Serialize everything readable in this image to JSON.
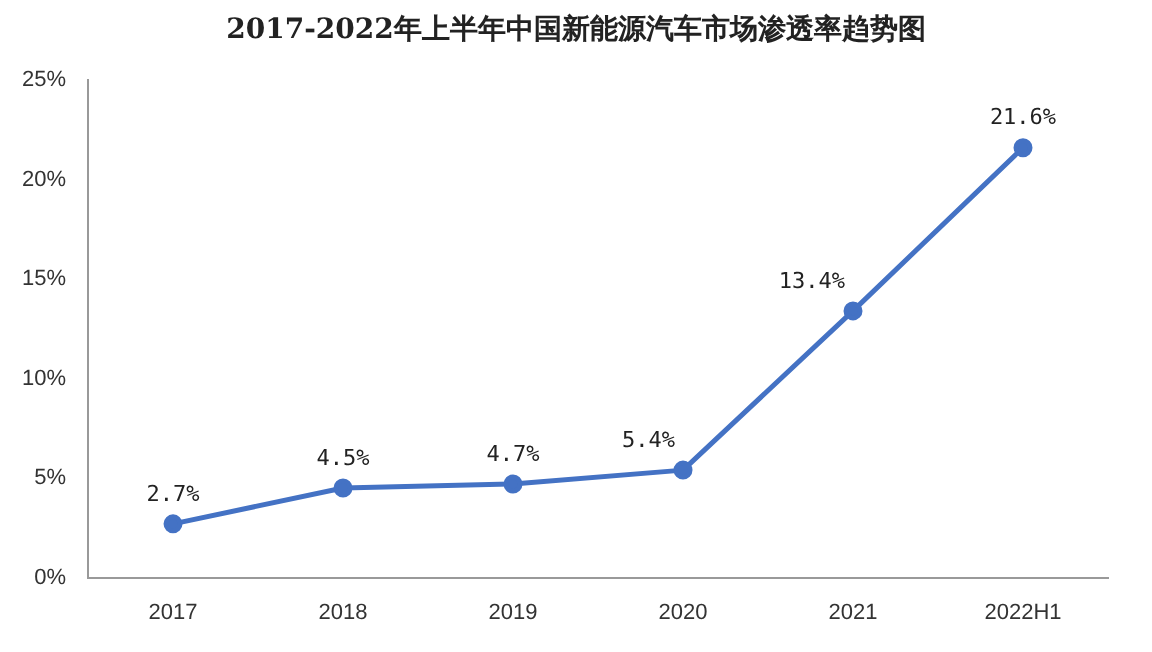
{
  "chart_data": {
    "type": "line",
    "title": "2017-2022年上半年中国新能源汽车市场渗透率趋势图",
    "categories": [
      "2017",
      "2018",
      "2019",
      "2020",
      "2021",
      "2022H1"
    ],
    "series": [
      {
        "color": "#4472c4",
        "values": [
          2.7,
          4.5,
          4.7,
          5.4,
          13.4,
          21.6
        ],
        "value_labels": [
          "2.7%",
          "4.5%",
          "4.7%",
          "5.4%",
          "13.4%",
          "21.6%"
        ]
      }
    ],
    "ylim": [
      0,
      25
    ],
    "yticks": [
      {
        "value": 0,
        "label": "0%"
      },
      {
        "value": 5,
        "label": "5%"
      },
      {
        "value": 10,
        "label": "10%"
      },
      {
        "value": 15,
        "label": "15%"
      },
      {
        "value": 20,
        "label": "20%"
      },
      {
        "value": 25,
        "label": "25%"
      }
    ],
    "grid": false,
    "legend": false,
    "marker": "circle",
    "line_style": "solid"
  }
}
